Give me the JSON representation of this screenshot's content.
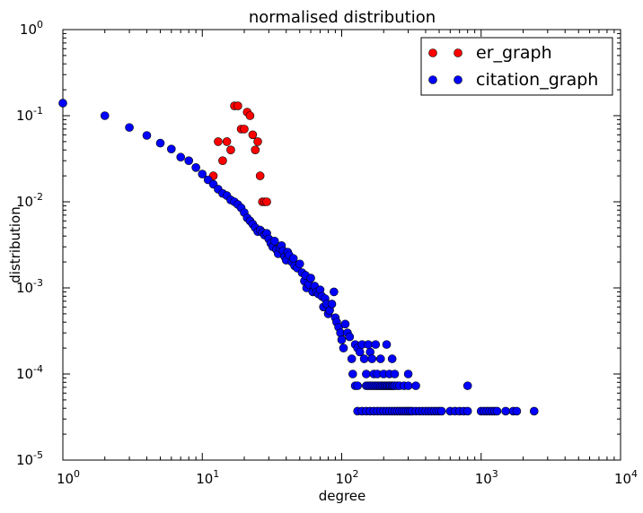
{
  "chart_data": {
    "type": "scatter",
    "title": "normalised distribution",
    "xlabel": "degree",
    "ylabel": "distribution",
    "xscale": "log",
    "yscale": "log",
    "xlim": [
      1,
      10000
    ],
    "ylim": [
      1e-05,
      1
    ],
    "x_ticks": [
      {
        "value": 1,
        "base": "10",
        "exp": "0"
      },
      {
        "value": 10,
        "base": "10",
        "exp": "1"
      },
      {
        "value": 100,
        "base": "10",
        "exp": "2"
      },
      {
        "value": 1000,
        "base": "10",
        "exp": "3"
      },
      {
        "value": 10000,
        "base": "10",
        "exp": "4"
      }
    ],
    "y_ticks": [
      {
        "value": 1e-05,
        "base": "10",
        "exp": "-5"
      },
      {
        "value": 0.0001,
        "base": "10",
        "exp": "-4"
      },
      {
        "value": 0.001,
        "base": "10",
        "exp": "-3"
      },
      {
        "value": 0.01,
        "base": "10",
        "exp": "-2"
      },
      {
        "value": 0.1,
        "base": "10",
        "exp": "-1"
      },
      {
        "value": 1,
        "base": "10",
        "exp": "0"
      }
    ],
    "grid": false,
    "legend_position": "top-right",
    "series": [
      {
        "name": "er_graph",
        "color": "#ff0000",
        "points": [
          [
            12,
            0.02
          ],
          [
            13,
            0.05
          ],
          [
            14,
            0.03
          ],
          [
            15,
            0.05
          ],
          [
            16,
            0.04
          ],
          [
            17,
            0.13
          ],
          [
            18,
            0.13
          ],
          [
            19,
            0.07
          ],
          [
            20,
            0.07
          ],
          [
            21,
            0.11
          ],
          [
            22,
            0.1
          ],
          [
            23,
            0.06
          ],
          [
            24,
            0.04
          ],
          [
            25,
            0.05
          ],
          [
            26,
            0.02
          ],
          [
            27,
            0.01
          ],
          [
            28,
            0.01
          ],
          [
            29,
            0.01
          ]
        ]
      },
      {
        "name": "citation_graph",
        "color": "#0000ff",
        "points": [
          [
            1,
            0.14
          ],
          [
            2,
            0.1
          ],
          [
            3,
            0.073
          ],
          [
            4,
            0.059
          ],
          [
            5,
            0.048
          ],
          [
            6,
            0.041
          ],
          [
            7,
            0.033
          ],
          [
            8,
            0.03
          ],
          [
            9,
            0.025
          ],
          [
            10,
            0.021
          ],
          [
            11,
            0.018
          ],
          [
            12,
            0.016
          ],
          [
            13,
            0.014
          ],
          [
            14,
            0.0125
          ],
          [
            15,
            0.0118
          ],
          [
            16,
            0.0105
          ],
          [
            17,
            0.01
          ],
          [
            18,
            0.0093
          ],
          [
            19,
            0.0085
          ],
          [
            20,
            0.0075
          ],
          [
            21,
            0.0065
          ],
          [
            22,
            0.006
          ],
          [
            23,
            0.0055
          ],
          [
            24,
            0.005
          ],
          [
            25,
            0.0045
          ],
          [
            26,
            0.0047
          ],
          [
            27,
            0.0044
          ],
          [
            28,
            0.0041
          ],
          [
            29,
            0.0043
          ],
          [
            30,
            0.0037
          ],
          [
            31,
            0.0033
          ],
          [
            32,
            0.003
          ],
          [
            33,
            0.0035
          ],
          [
            34,
            0.0028
          ],
          [
            35,
            0.0025
          ],
          [
            36,
            0.0029
          ],
          [
            37,
            0.0031
          ],
          [
            38,
            0.0027
          ],
          [
            39,
            0.0023
          ],
          [
            40,
            0.0021
          ],
          [
            41,
            0.0026
          ],
          [
            42,
            0.0024
          ],
          [
            44,
            0.002
          ],
          [
            45,
            0.0022
          ],
          [
            46,
            0.0018
          ],
          [
            48,
            0.0017
          ],
          [
            50,
            0.0019
          ],
          [
            52,
            0.0015
          ],
          [
            54,
            0.0012
          ],
          [
            55,
            0.0014
          ],
          [
            56,
            0.001
          ],
          [
            58,
            0.0011
          ],
          [
            60,
            0.0013
          ],
          [
            62,
            0.0009
          ],
          [
            64,
            0.00105
          ],
          [
            66,
            0.0009
          ],
          [
            68,
            0.00085
          ],
          [
            70,
            0.00095
          ],
          [
            72,
            0.0008
          ],
          [
            74,
            0.0006
          ],
          [
            76,
            0.00075
          ],
          [
            78,
            0.00065
          ],
          [
            80,
            0.0005
          ],
          [
            82,
            0.00055
          ],
          [
            85,
            0.00065
          ],
          [
            88,
            0.0009
          ],
          [
            90,
            0.00045
          ],
          [
            92,
            0.0004
          ],
          [
            95,
            0.00035
          ],
          [
            98,
            0.0003
          ],
          [
            100,
            0.00025
          ],
          [
            103,
            0.0002
          ],
          [
            106,
            0.00038
          ],
          [
            110,
            0.0003
          ],
          [
            114,
            0.00027
          ],
          [
            118,
            0.00015
          ],
          [
            120,
            0.0001
          ],
          [
            125,
            0.00022
          ],
          [
            130,
            0.0002
          ],
          [
            135,
            0.00018
          ],
          [
            140,
            0.00022
          ],
          [
            145,
            0.00015
          ],
          [
            150,
            0.0001
          ],
          [
            155,
            0.00022
          ],
          [
            160,
            0.00018
          ],
          [
            165,
            0.00015
          ],
          [
            170,
            0.0001
          ],
          [
            175,
            0.00022
          ],
          [
            180,
            0.0001
          ],
          [
            190,
            0.00015
          ],
          [
            200,
            0.0001
          ],
          [
            210,
            0.00022
          ],
          [
            220,
            0.0001
          ],
          [
            230,
            0.00015
          ],
          [
            240,
            0.0001
          ],
          [
            300,
            0.0001
          ],
          [
            125,
            7.3e-05
          ],
          [
            130,
            7.3e-05
          ],
          [
            150,
            7.3e-05
          ],
          [
            155,
            7.3e-05
          ],
          [
            160,
            7.3e-05
          ],
          [
            165,
            7.3e-05
          ],
          [
            170,
            7.3e-05
          ],
          [
            175,
            7.3e-05
          ],
          [
            180,
            7.3e-05
          ],
          [
            185,
            7.3e-05
          ],
          [
            190,
            7.3e-05
          ],
          [
            195,
            7.3e-05
          ],
          [
            200,
            7.3e-05
          ],
          [
            205,
            7.3e-05
          ],
          [
            210,
            7.3e-05
          ],
          [
            215,
            7.3e-05
          ],
          [
            220,
            7.3e-05
          ],
          [
            225,
            7.3e-05
          ],
          [
            230,
            7.3e-05
          ],
          [
            235,
            7.3e-05
          ],
          [
            240,
            7.3e-05
          ],
          [
            250,
            7.3e-05
          ],
          [
            260,
            7.3e-05
          ],
          [
            280,
            7.3e-05
          ],
          [
            300,
            7.3e-05
          ],
          [
            340,
            7.3e-05
          ],
          [
            800,
            7.3e-05
          ],
          [
            130,
            3.7e-05
          ],
          [
            140,
            3.7e-05
          ],
          [
            150,
            3.7e-05
          ],
          [
            160,
            3.7e-05
          ],
          [
            170,
            3.7e-05
          ],
          [
            180,
            3.7e-05
          ],
          [
            190,
            3.7e-05
          ],
          [
            200,
            3.7e-05
          ],
          [
            210,
            3.7e-05
          ],
          [
            220,
            3.7e-05
          ],
          [
            230,
            3.7e-05
          ],
          [
            240,
            3.7e-05
          ],
          [
            250,
            3.7e-05
          ],
          [
            260,
            3.7e-05
          ],
          [
            270,
            3.7e-05
          ],
          [
            280,
            3.7e-05
          ],
          [
            290,
            3.7e-05
          ],
          [
            300,
            3.7e-05
          ],
          [
            310,
            3.7e-05
          ],
          [
            320,
            3.7e-05
          ],
          [
            340,
            3.7e-05
          ],
          [
            360,
            3.7e-05
          ],
          [
            380,
            3.7e-05
          ],
          [
            400,
            3.7e-05
          ],
          [
            420,
            3.7e-05
          ],
          [
            440,
            3.7e-05
          ],
          [
            460,
            3.7e-05
          ],
          [
            480,
            3.7e-05
          ],
          [
            500,
            3.7e-05
          ],
          [
            520,
            3.7e-05
          ],
          [
            600,
            3.7e-05
          ],
          [
            650,
            3.7e-05
          ],
          [
            700,
            3.7e-05
          ],
          [
            750,
            3.7e-05
          ],
          [
            800,
            3.7e-05
          ],
          [
            1000,
            3.7e-05
          ],
          [
            1050,
            3.7e-05
          ],
          [
            1100,
            3.7e-05
          ],
          [
            1150,
            3.7e-05
          ],
          [
            1200,
            3.7e-05
          ],
          [
            1250,
            3.7e-05
          ],
          [
            1300,
            3.7e-05
          ],
          [
            1500,
            3.7e-05
          ],
          [
            1700,
            3.7e-05
          ],
          [
            1800,
            3.7e-05
          ],
          [
            2400,
            3.7e-05
          ]
        ]
      }
    ]
  }
}
